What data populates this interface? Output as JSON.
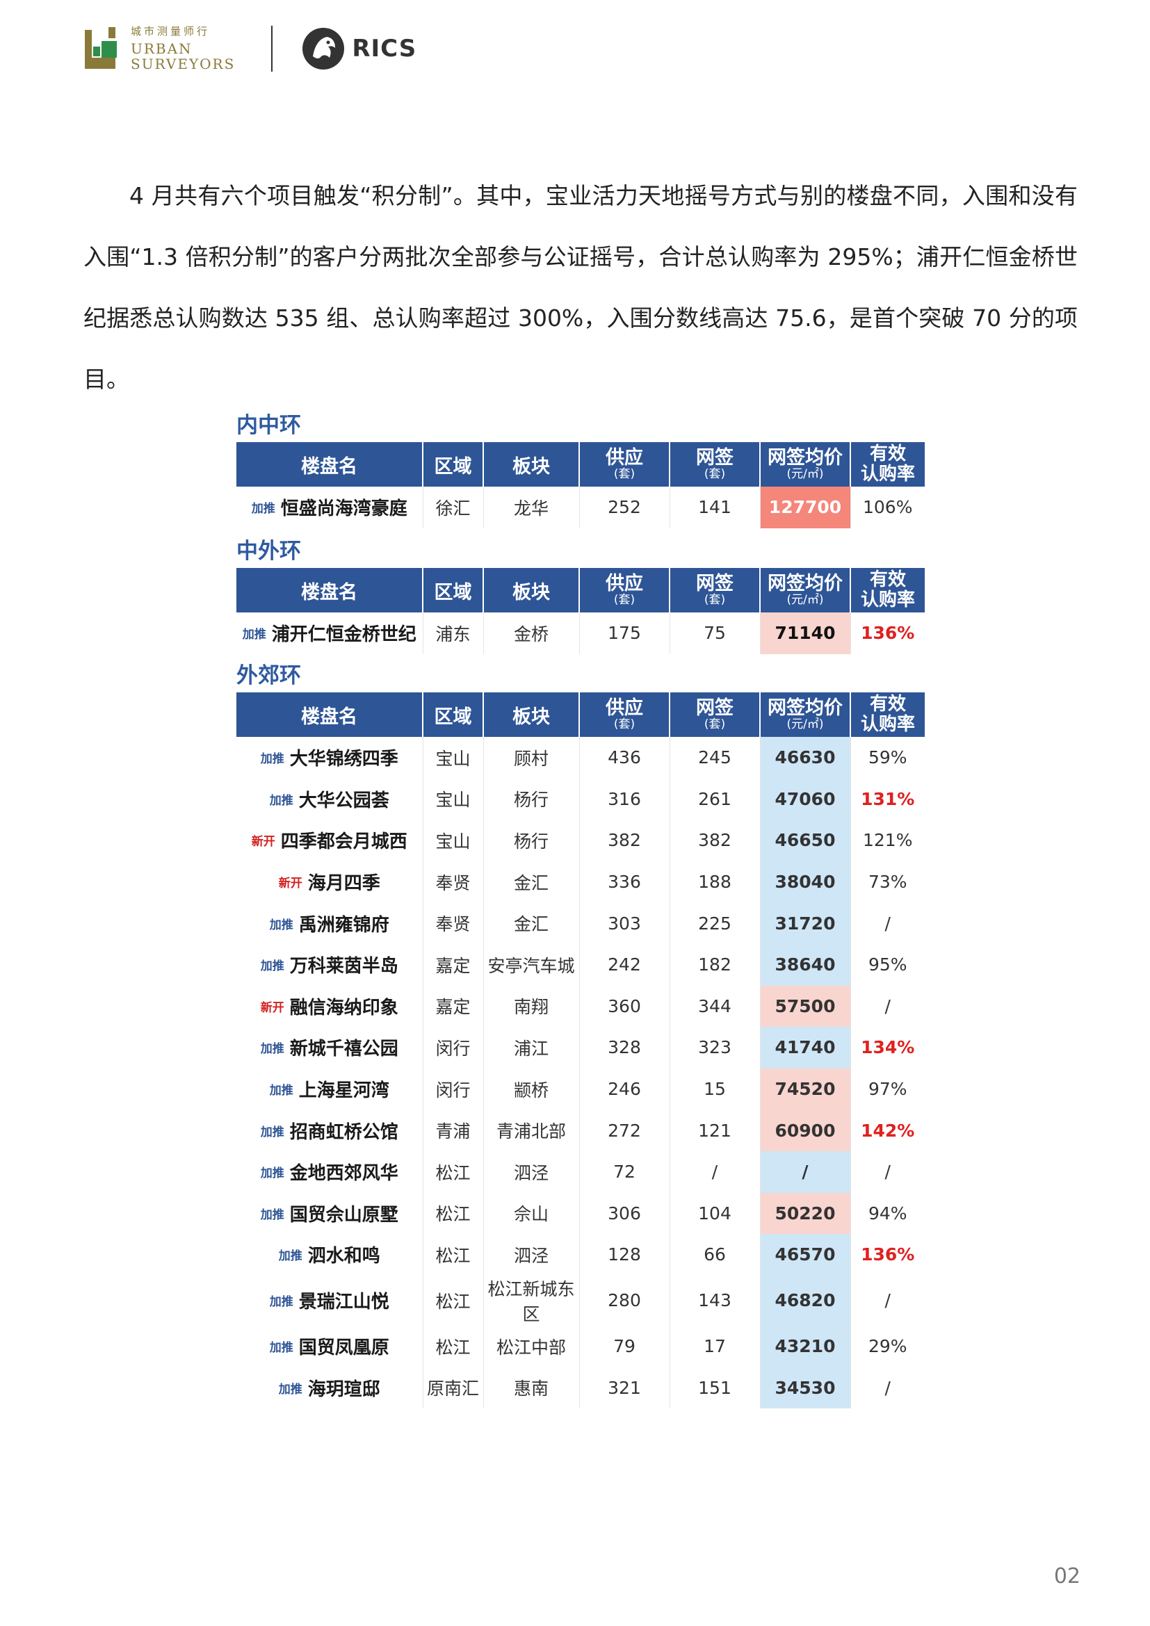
{
  "header": {
    "logo_cn": "城市测量师行",
    "logo_en_line1": "URBAN",
    "logo_en_line2": "SURVEYORS",
    "rics": "RICS"
  },
  "paragraph": "4 月共有六个项目触发“积分制”。其中，宝业活力天地摇号方式与别的楼盘不同，入围和没有入围“1.3 倍积分制”的客户分两批次全部参与公证摇号，合计总认购率为 295%；浦开仁恒金桥世纪据悉总认购数达 535 组、总认购率超过 300%，入围分数线高达 75.6，是首个突破 70 分的项目。",
  "columns": {
    "name": "楼盘名",
    "district": "区域",
    "block": "板块",
    "supply": "供应",
    "supply_unit": "(套)",
    "signed": "网签",
    "signed_unit": "(套)",
    "price": "网签均价",
    "price_unit": "(元/㎡)",
    "rate_l1": "有效",
    "rate_l2": "认购率"
  },
  "sections": [
    {
      "title": "内中环",
      "rows": [
        {
          "tag": "加推",
          "name": "恒盛尚海湾豪庭",
          "district": "徐汇",
          "block": "龙华",
          "supply": "252",
          "signed": "141",
          "price": "127700",
          "rate": "106%",
          "price_bg": "#f4867a",
          "price_color": "#ffffff",
          "rate_high": false
        }
      ]
    },
    {
      "title": "中外环",
      "rows": [
        {
          "tag": "加推",
          "name": "浦开仁恒金桥世纪",
          "district": "浦东",
          "block": "金桥",
          "supply": "175",
          "signed": "75",
          "price": "71140",
          "rate": "136%",
          "price_bg": "#f9d5cf",
          "price_color": "#111111",
          "rate_high": true
        }
      ]
    },
    {
      "title": "外郊环",
      "rows": [
        {
          "tag": "加推",
          "name": "大华锦绣四季",
          "district": "宝山",
          "block": "顾村",
          "supply": "436",
          "signed": "245",
          "price": "46630",
          "rate": "59%",
          "price_bg": "#cfe6f7",
          "rate_high": false
        },
        {
          "tag": "加推",
          "name": "大华公园荟",
          "district": "宝山",
          "block": "杨行",
          "supply": "316",
          "signed": "261",
          "price": "47060",
          "rate": "131%",
          "price_bg": "#cfe6f7",
          "rate_high": true
        },
        {
          "tag": "新开",
          "name": "四季都会月城西",
          "district": "宝山",
          "block": "杨行",
          "supply": "382",
          "signed": "382",
          "price": "46650",
          "rate": "121%",
          "price_bg": "#cfe6f7",
          "rate_high": false
        },
        {
          "tag": "新开",
          "name": "海月四季",
          "district": "奉贤",
          "block": "金汇",
          "supply": "336",
          "signed": "188",
          "price": "38040",
          "rate": "73%",
          "price_bg": "#cfe6f7",
          "rate_high": false
        },
        {
          "tag": "加推",
          "name": "禹洲雍锦府",
          "district": "奉贤",
          "block": "金汇",
          "supply": "303",
          "signed": "225",
          "price": "31720",
          "rate": "/",
          "price_bg": "#cfe6f7",
          "rate_high": false
        },
        {
          "tag": "加推",
          "name": "万科莱茵半岛",
          "district": "嘉定",
          "block": "安亭汽车城",
          "supply": "242",
          "signed": "182",
          "price": "38640",
          "rate": "95%",
          "price_bg": "#cfe6f7",
          "rate_high": false,
          "small_block": true
        },
        {
          "tag": "新开",
          "name": "融信海纳印象",
          "district": "嘉定",
          "block": "南翔",
          "supply": "360",
          "signed": "344",
          "price": "57500",
          "rate": "/",
          "price_bg": "#f9d5cf",
          "rate_high": false
        },
        {
          "tag": "加推",
          "name": "新城千禧公园",
          "district": "闵行",
          "block": "浦江",
          "supply": "328",
          "signed": "323",
          "price": "41740",
          "rate": "134%",
          "price_bg": "#cfe6f7",
          "rate_high": true
        },
        {
          "tag": "加推",
          "name": "上海星河湾",
          "district": "闵行",
          "block": "颛桥",
          "supply": "246",
          "signed": "15",
          "price": "74520",
          "rate": "97%",
          "price_bg": "#f9d5cf",
          "rate_high": false
        },
        {
          "tag": "加推",
          "name": "招商虹桥公馆",
          "district": "青浦",
          "block": "青浦北部",
          "supply": "272",
          "signed": "121",
          "price": "60900",
          "rate": "142%",
          "price_bg": "#f9d5cf",
          "rate_high": true
        },
        {
          "tag": "加推",
          "name": "金地西郊风华",
          "district": "松江",
          "block": "泗泾",
          "supply": "72",
          "signed": "/",
          "price": "/",
          "rate": "/",
          "price_bg": "#cfe6f7",
          "rate_high": false
        },
        {
          "tag": "加推",
          "name": "国贸佘山原墅",
          "district": "松江",
          "block": "佘山",
          "supply": "306",
          "signed": "104",
          "price": "50220",
          "rate": "94%",
          "price_bg": "#f9d5cf",
          "rate_high": false
        },
        {
          "tag": "加推",
          "name": "泗水和鸣",
          "district": "松江",
          "block": "泗泾",
          "supply": "128",
          "signed": "66",
          "price": "46570",
          "rate": "136%",
          "price_bg": "#cfe6f7",
          "rate_high": true
        },
        {
          "tag": "加推",
          "name": "景瑞江山悦",
          "district": "松江",
          "block": "松江新城东区",
          "supply": "280",
          "signed": "143",
          "price": "46820",
          "rate": "/",
          "price_bg": "#cfe6f7",
          "rate_high": false,
          "small_block": true
        },
        {
          "tag": "加推",
          "name": "国贸凤凰原",
          "district": "松江",
          "block": "松江中部",
          "supply": "79",
          "signed": "17",
          "price": "43210",
          "rate": "29%",
          "price_bg": "#cfe6f7",
          "rate_high": false
        },
        {
          "tag": "加推",
          "name": "海玥瑄邸",
          "district": "原南汇",
          "block": "惠南",
          "supply": "321",
          "signed": "151",
          "price": "34530",
          "rate": "/",
          "price_bg": "#cfe6f7",
          "rate_high": false
        }
      ]
    }
  ],
  "page_number": "02"
}
